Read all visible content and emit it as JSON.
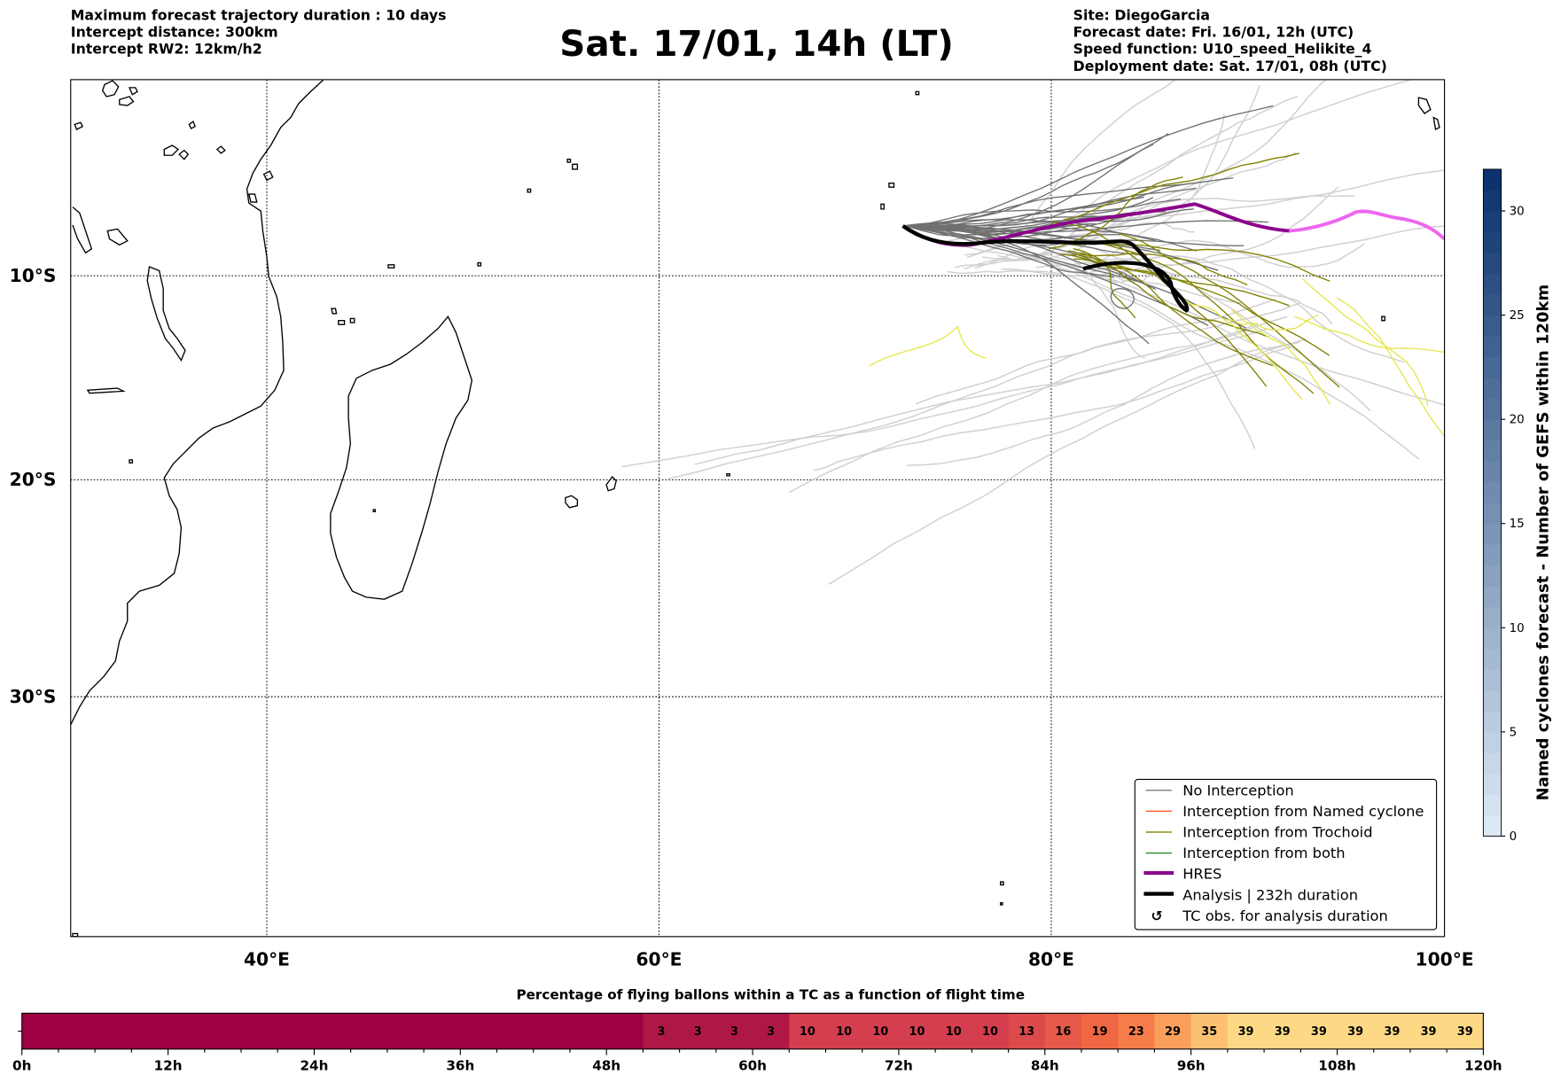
{
  "header": {
    "left": [
      "Maximum forecast trajectory duration : 10 days",
      "Intercept distance: 300km",
      "Intercept RW2: 12km/h2"
    ],
    "title": "Sat. 17/01, 14h (LT)",
    "right": [
      "Site: DiegoGarcia",
      "Forecast date: Fri. 16/01, 12h (UTC)",
      "Speed function: U10_speed_Helikite_4",
      "Deployment date: Sat. 17/01, 08h (UTC)"
    ]
  },
  "chart_data": [
    {
      "type": "line",
      "title": "Sat. 17/01, 14h (LT)",
      "x_tick_labels": [
        "40°E",
        "60°E",
        "80°E",
        "100°E"
      ],
      "y_tick_labels": [
        "10°S",
        "20°S",
        "30°S"
      ],
      "xlim": [
        30,
        100
      ],
      "grid": true,
      "legend_placement": "lower-right",
      "legend": [
        {
          "label": "No Interception",
          "color": "#707070"
        },
        {
          "label": "Interception from Named cyclone",
          "color": "#ff5a1e"
        },
        {
          "label": "Interception from Trochoid",
          "color": "#808000"
        },
        {
          "label": "Interception from both",
          "color": "#228b22"
        },
        {
          "label": "HRES",
          "color": "#8b008b"
        },
        {
          "label": "Analysis | 232h duration",
          "color": "#000000"
        },
        {
          "label": "TC obs. for analysis duration",
          "symbol": "↺"
        }
      ],
      "colorbar": {
        "label": "Named cyclones forecast - Number of GEFS within 120km",
        "ticks": [
          0,
          5,
          10,
          15,
          20,
          25,
          30
        ],
        "range": [
          0,
          32
        ],
        "colormap": "Blues"
      }
    },
    {
      "type": "heatmap",
      "title": "Percentage of flying ballons within a TC as a function of flight time",
      "bin_hours": 3,
      "xlim": [
        0,
        120
      ],
      "x_tick_labels": [
        "0h",
        "12h",
        "24h",
        "36h",
        "48h",
        "60h",
        "72h",
        "84h",
        "96h",
        "108h",
        "120h"
      ],
      "values": [
        0,
        0,
        0,
        0,
        0,
        0,
        0,
        0,
        0,
        0,
        0,
        0,
        0,
        0,
        0,
        0,
        0,
        3,
        3,
        3,
        3,
        10,
        10,
        10,
        10,
        10,
        10,
        13,
        16,
        19,
        23,
        29,
        35,
        39,
        39,
        39,
        39,
        39,
        39,
        39
      ]
    }
  ]
}
